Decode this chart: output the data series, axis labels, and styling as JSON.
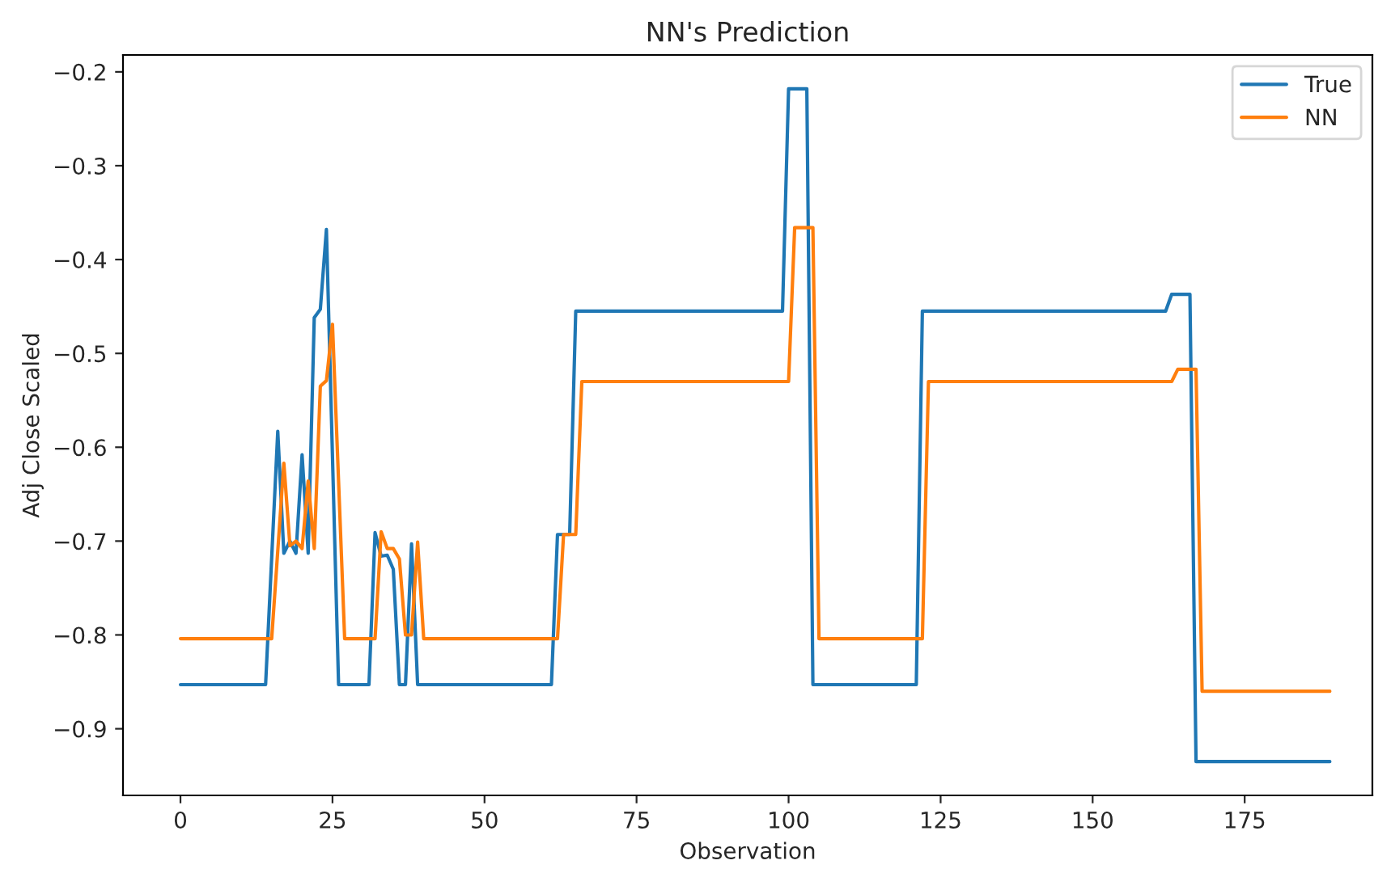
{
  "chart_data": {
    "type": "line",
    "title": "NN's Prediction",
    "xlabel": "Observation",
    "ylabel": "Adj Close Scaled",
    "series": [
      {
        "name": "True",
        "color": "#1f77b4",
        "x": [
          0,
          14,
          16,
          17,
          18,
          19,
          20,
          21,
          22,
          23,
          24,
          26,
          31,
          32,
          33,
          34,
          35,
          36,
          37,
          38,
          39,
          61,
          62,
          64,
          65,
          99,
          100,
          103,
          104,
          121,
          122,
          162,
          163,
          166,
          167,
          189
        ],
        "values": [
          -0.853,
          -0.853,
          -0.583,
          -0.713,
          -0.7,
          -0.713,
          -0.608,
          -0.713,
          -0.462,
          -0.453,
          -0.368,
          -0.853,
          -0.853,
          -0.691,
          -0.716,
          -0.715,
          -0.73,
          -0.853,
          -0.853,
          -0.703,
          -0.853,
          -0.853,
          -0.693,
          -0.693,
          -0.455,
          -0.455,
          -0.218,
          -0.218,
          -0.853,
          -0.853,
          -0.455,
          -0.455,
          -0.437,
          -0.437,
          -0.935,
          -0.935
        ]
      },
      {
        "name": "NN",
        "color": "#ff7f0e",
        "x": [
          0,
          15,
          17,
          18,
          19,
          20,
          21,
          22,
          23,
          24,
          25,
          27,
          32,
          33,
          34,
          35,
          36,
          37,
          38,
          39,
          40,
          62,
          63,
          65,
          66,
          100,
          101,
          104,
          105,
          122,
          123,
          163,
          164,
          167,
          168,
          189
        ],
        "values": [
          -0.804,
          -0.804,
          -0.617,
          -0.705,
          -0.7,
          -0.708,
          -0.636,
          -0.708,
          -0.535,
          -0.529,
          -0.469,
          -0.804,
          -0.804,
          -0.69,
          -0.708,
          -0.708,
          -0.719,
          -0.8,
          -0.8,
          -0.701,
          -0.804,
          -0.804,
          -0.693,
          -0.693,
          -0.53,
          -0.53,
          -0.366,
          -0.366,
          -0.804,
          -0.804,
          -0.53,
          -0.53,
          -0.517,
          -0.517,
          -0.86,
          -0.86
        ]
      }
    ],
    "xlim": [
      -9.45,
      196
    ],
    "ylim": [
      -0.971,
      -0.182
    ],
    "xticks": [
      0,
      25,
      50,
      75,
      100,
      125,
      150,
      175
    ],
    "yticks": [
      {
        "value": -0.9,
        "label": "−0.9"
      },
      {
        "value": -0.8,
        "label": "−0.8"
      },
      {
        "value": -0.7,
        "label": "−0.7"
      },
      {
        "value": -0.6,
        "label": "−0.6"
      },
      {
        "value": -0.5,
        "label": "−0.5"
      },
      {
        "value": -0.4,
        "label": "−0.4"
      },
      {
        "value": -0.3,
        "label": "−0.3"
      },
      {
        "value": -0.2,
        "label": "−0.2"
      }
    ],
    "legend": "top right",
    "grid": false
  }
}
